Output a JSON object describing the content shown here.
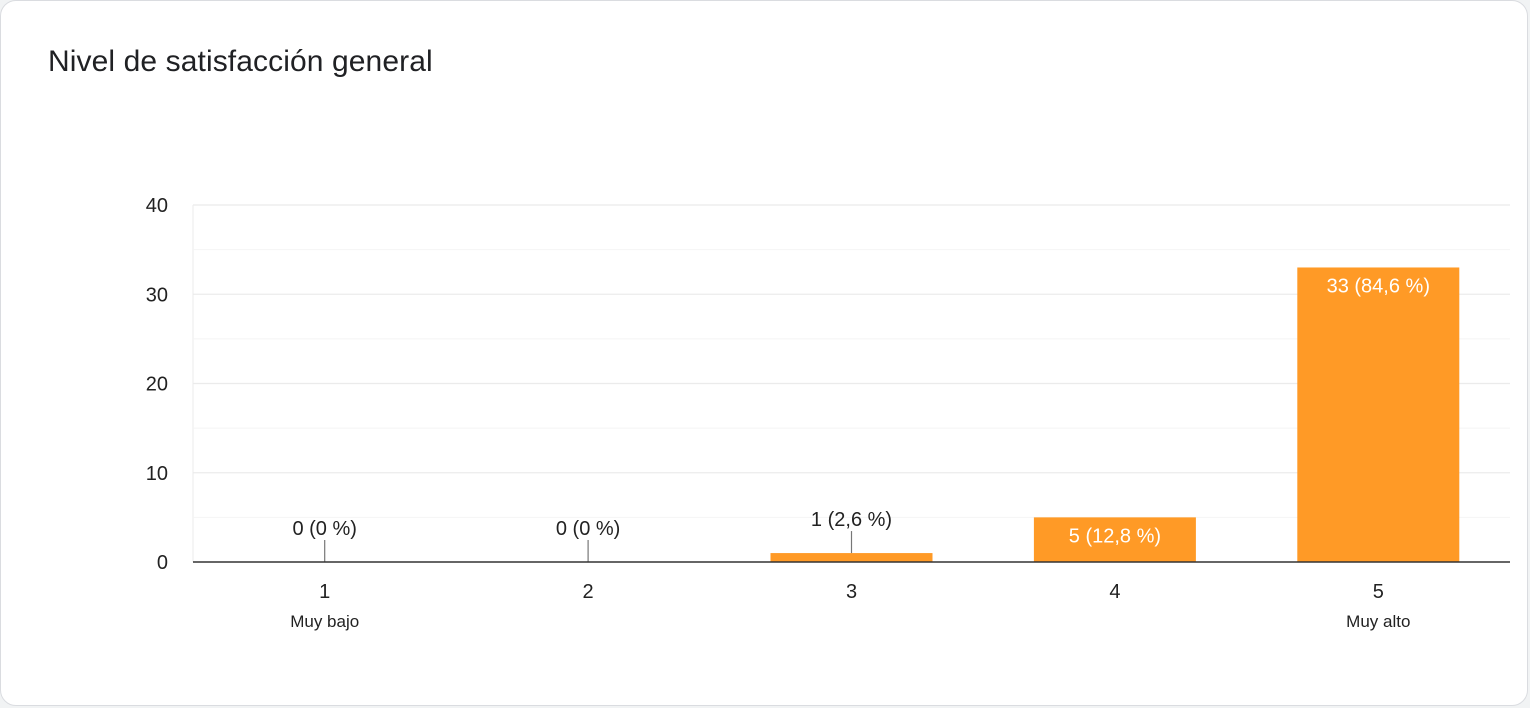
{
  "title": "Nivel de satisfacción general",
  "colors": {
    "bar": "#ff9a26",
    "grid": "#ebebeb",
    "minor_grid": "#f4f4f4",
    "axis": "#333333",
    "text": "#222222",
    "label_inside": "#ffffff"
  },
  "chart_data": {
    "type": "bar",
    "title": "Nivel de satisfacción general",
    "categories": [
      "1",
      "2",
      "3",
      "4",
      "5"
    ],
    "category_sublabels": [
      "Muy bajo",
      "",
      "",
      "",
      "Muy alto"
    ],
    "values": [
      0,
      0,
      1,
      5,
      33
    ],
    "data_labels": [
      "0 (0 %)",
      "0 (0 %)",
      "1 (2,6 %)",
      "5 (12,8 %)",
      "33 (84,6 %)"
    ],
    "ylim": [
      0,
      40
    ],
    "yticks": [
      0,
      10,
      20,
      30,
      40
    ],
    "xlabel": "",
    "ylabel": "",
    "grid": true
  }
}
